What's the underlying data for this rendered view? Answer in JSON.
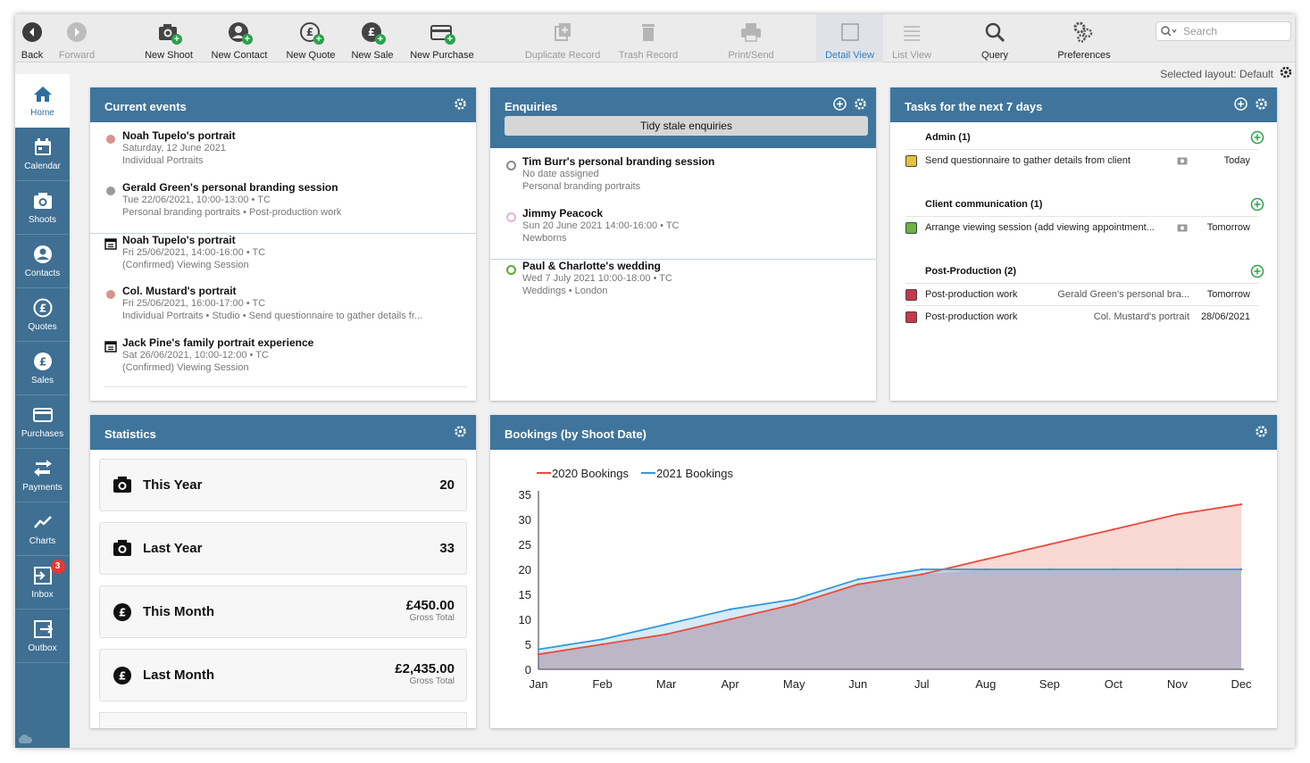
{
  "toolbar": {
    "items": [
      {
        "label": "Back",
        "icon": "back-icon"
      },
      {
        "label": "Forward",
        "icon": "forward-icon"
      },
      {
        "label": "New Shoot",
        "icon": "camera-add-icon"
      },
      {
        "label": "New Contact",
        "icon": "contact-add-icon"
      },
      {
        "label": "New Quote",
        "icon": "quote-add-icon"
      },
      {
        "label": "New Sale",
        "icon": "sale-add-icon"
      },
      {
        "label": "New Purchase",
        "icon": "purchase-add-icon"
      },
      {
        "label": "Duplicate Record",
        "icon": "duplicate-icon"
      },
      {
        "label": "Trash Record",
        "icon": "trash-icon"
      },
      {
        "label": "Print/Send",
        "icon": "print-icon"
      },
      {
        "label": "Detail View",
        "icon": "detail-view-icon"
      },
      {
        "label": "List View",
        "icon": "list-view-icon"
      },
      {
        "label": "Query",
        "icon": "query-icon"
      },
      {
        "label": "Preferences",
        "icon": "preferences-icon"
      }
    ],
    "search_placeholder": "Search"
  },
  "layout_label": "Selected layout: Default",
  "sidebar": {
    "items": [
      {
        "label": "Home"
      },
      {
        "label": "Calendar"
      },
      {
        "label": "Shoots"
      },
      {
        "label": "Contacts"
      },
      {
        "label": "Quotes"
      },
      {
        "label": "Sales"
      },
      {
        "label": "Purchases"
      },
      {
        "label": "Payments"
      },
      {
        "label": "Charts"
      },
      {
        "label": "Inbox",
        "badge": "3"
      },
      {
        "label": "Outbox"
      }
    ]
  },
  "current_events": {
    "title": "Current events",
    "items": [
      {
        "title": "Noah Tupelo's portrait",
        "line2": "Saturday, 12 June 2021",
        "line3": "Individual Portraits",
        "marker": "dot",
        "color": "#d4958a"
      },
      {
        "title": "Gerald Green's personal branding session",
        "line2": "Tue 22/06/2021, 10:00-13:00  •  TC",
        "line3": "Personal branding portraits  •  Post-production work",
        "marker": "dot",
        "color": "#9a9a9a"
      },
      {
        "title": "Noah Tupelo's portrait",
        "line2": "Fri 25/06/2021, 14:00-16:00  •  TC",
        "line3": "(Confirmed) Viewing Session",
        "marker": "calendar"
      },
      {
        "title": "Col. Mustard's portrait",
        "line2": "Fri 25/06/2021, 16:00-17:00  •  TC",
        "line3": "Individual Portraits  •  Studio  •  Send questionnaire to gather details fr...",
        "marker": "dot",
        "color": "#d4958a"
      },
      {
        "title": "Jack Pine's family portrait experience",
        "line2": "Sat 26/06/2021, 10:00-12:00  •  TC",
        "line3": "(Confirmed) Viewing Session",
        "marker": "calendar"
      }
    ]
  },
  "enquiries": {
    "title": "Enquiries",
    "tidy_label": "Tidy stale enquiries",
    "items": [
      {
        "title": "Tim Burr's personal branding session",
        "line2": "No date assigned",
        "line3": "Personal branding portraits",
        "color": "#8a8a8a"
      },
      {
        "title": "Jimmy Peacock",
        "line2": "Sun 20 June 2021 14:00-16:00  •  TC",
        "line3": "Newborns",
        "color": "#e6b3df"
      },
      {
        "title": "Paul & Charlotte's wedding",
        "line2": "Wed 7 July 2021 10:00-18:00  •  TC",
        "line3": "Weddings  •  London",
        "color": "#5aab3a"
      }
    ]
  },
  "tasks": {
    "title": "Tasks for the next 7 days",
    "groups": [
      {
        "name": "Admin (1)",
        "tasks": [
          {
            "name": "Send questionnaire to gather details from client",
            "related": "",
            "due": "Today",
            "color": "#e6c23a",
            "camera": true
          }
        ]
      },
      {
        "name": "Client communication (1)",
        "tasks": [
          {
            "name": "Arrange viewing session (add viewing appointment...",
            "related": "",
            "due": "Tomorrow",
            "color": "#6cb33f",
            "camera": true
          }
        ]
      },
      {
        "name": "Post-Production (2)",
        "tasks": [
          {
            "name": "Post-production work",
            "related": "Gerald Green's personal bra...",
            "due": "Tomorrow",
            "color": "#c8374a",
            "camera": false
          },
          {
            "name": "Post-production work",
            "related": "Col. Mustard's portrait",
            "due": "28/06/2021",
            "color": "#c8374a",
            "camera": false
          }
        ]
      }
    ]
  },
  "statistics": {
    "title": "Statistics",
    "items": [
      {
        "label": "This Year",
        "value": "20",
        "sub": "",
        "icon": "camera-icon"
      },
      {
        "label": "Last Year",
        "value": "33",
        "sub": "",
        "icon": "camera-icon"
      },
      {
        "label": "This Month",
        "value": "£450.00",
        "sub": "Gross Total",
        "icon": "pound-icon"
      },
      {
        "label": "Last Month",
        "value": "£2,435.00",
        "sub": "Gross Total",
        "icon": "pound-icon"
      }
    ]
  },
  "bookings_chart": {
    "title": "Bookings (by Shoot Date)"
  },
  "chart_data": {
    "type": "area",
    "categories": [
      "Jan",
      "Feb",
      "Mar",
      "Apr",
      "May",
      "Jun",
      "Jul",
      "Aug",
      "Sep",
      "Oct",
      "Nov",
      "Dec"
    ],
    "series": [
      {
        "name": "2020 Bookings",
        "values": [
          3,
          5,
          7,
          10,
          13,
          17,
          19,
          22,
          25,
          28,
          31,
          33
        ],
        "color": "#e84c3d",
        "fill": "#f9d3d0"
      },
      {
        "name": "2021 Bookings",
        "values": [
          4,
          6,
          9,
          12,
          14,
          18,
          20,
          20,
          20,
          20,
          20,
          20
        ],
        "color": "#3498db",
        "fill": "#d3e8f6"
      }
    ],
    "yticks": [
      0,
      5,
      10,
      15,
      20,
      25,
      30,
      35
    ],
    "ylim": [
      0,
      35
    ],
    "legend": "top-left"
  }
}
